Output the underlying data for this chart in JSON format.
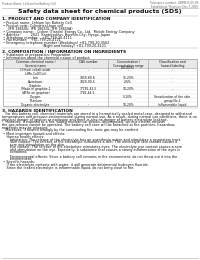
{
  "header_left": "Product Name: Lithium Ion Battery Cell",
  "header_right_line1": "Substance number: 48IMS15-05-9R",
  "header_right_line2": "Established / Revision: Dec.7.2009",
  "title": "Safety data sheet for chemical products (SDS)",
  "s1_title": "1. PRODUCT AND COMPANY IDENTIFICATION",
  "s1_lines": [
    " • Product name: Lithium Ion Battery Cell",
    " • Product code: Cylindrical-type cell",
    "     (IFR 18650U, IFR 18650L, IFR 18650A)",
    " • Company name:   Lishen (Tianjin) Energy Co., Ltd.  Mobile Energy Company",
    " • Address:         2021  Kantetsubun, Bunmin-City, Hyogo, Japan",
    " • Telephone number:   +81-799-20-4111",
    " • Fax number:   +81-799-20-4121",
    " • Emergency telephone number (Weekdays) +81-799-20-3562",
    "                                    (Night and holiday) +81-799-20-4121"
  ],
  "s2_title": "2. COMPOSITION / INFORMATION ON INGREDIENTS",
  "s2_pre": " • Substance or preparation: Preparation",
  "s2_sub": " • Information about the chemical nature of product:",
  "col_headers1": [
    "Common chemical name /",
    "CAS number",
    "Concentration /",
    "Classification and"
  ],
  "col_headers2": [
    "Several name",
    "",
    "Concentration range\n(30-60%)",
    "hazard labeling"
  ],
  "table_rows": [
    [
      "Lithium cobalt oxide",
      "-",
      "-",
      "-"
    ],
    [
      "(LiMn-CoO(Co))",
      "",
      "",
      ""
    ],
    [
      "Iron",
      "7439-89-6",
      "15-20%",
      "-"
    ],
    [
      "Aluminum",
      "7429-90-5",
      "2-6%",
      "-"
    ],
    [
      "Graphite",
      "",
      "",
      ""
    ],
    [
      "(Made in graphite-1",
      "77782-42-5",
      "10-20%",
      "-"
    ],
    [
      "(ATRe on graphite)",
      "7782-44-5",
      "",
      ""
    ],
    [
      "Oxygen",
      "",
      "5-10%",
      "Sensitization of the skin"
    ],
    [
      "Titanium",
      "",
      "",
      "group No.2"
    ],
    [
      "Organic electrolyte",
      "-",
      "10-20%",
      "Inflammable liquid"
    ]
  ],
  "s3_title": "3. HAZARDS IDENTIFICATION",
  "s3_para1": "   For this battery cell, chemical materials are stored in a hermetically sealed metal case, designed to withstand\ntemperatures and pressure-environmental during normal use. As a result, during normal use conditions, there is no\nphysical danger of ignition or explosion and there is also no danger of battery electrolyte leakage.\n   However, if exposed to a fire, added mechanical shocks, decomposed, serious electric misuse,\nthe gas release cannot be operated. The battery cell case will be breached at fire particles, hazardous\nmaterials may be released.\n   Moreover, if heated strongly by the surrounding fire, toxic gas may be emitted.",
  "s3_bullet1": " • Most important hazard and effects:",
  "s3_health": "    Human health effects:\n       Inhalation: The release of the electrolyte has an anesthesia action and stimulates a respiratory tract.\n       Skin contact: The release of the electrolyte stimulates a skin. The electrolyte skin contact causes a\n       sore and stimulation on the skin.\n       Eye contact: The release of the electrolyte stimulates eyes. The electrolyte eye contact causes a sore\n       and stimulation on the eye. Especially, a substance that causes a strong inflammation of the eyes is\n       contained.\n\n       Environmental effects: Since a battery cell remains in the environment, do not throw out it into the\n       environment.",
  "s3_bullet2": " • Specific hazards:",
  "s3_specific": "    If the electrolyte contacts with water, it will generate detrimental hydrogen fluoride.\n    Since the leaked electrolyte is inflammable liquid, do not bring close to fire.",
  "bg_color": "#ffffff",
  "text_color": "#111111",
  "gray_text": "#666666",
  "line_color": "#aaaaaa",
  "table_border": "#999999",
  "header_bg": "#e8e8e8",
  "title_fs": 4.5,
  "sec_fs": 3.2,
  "body_fs": 2.4,
  "hdr_fs": 2.2
}
